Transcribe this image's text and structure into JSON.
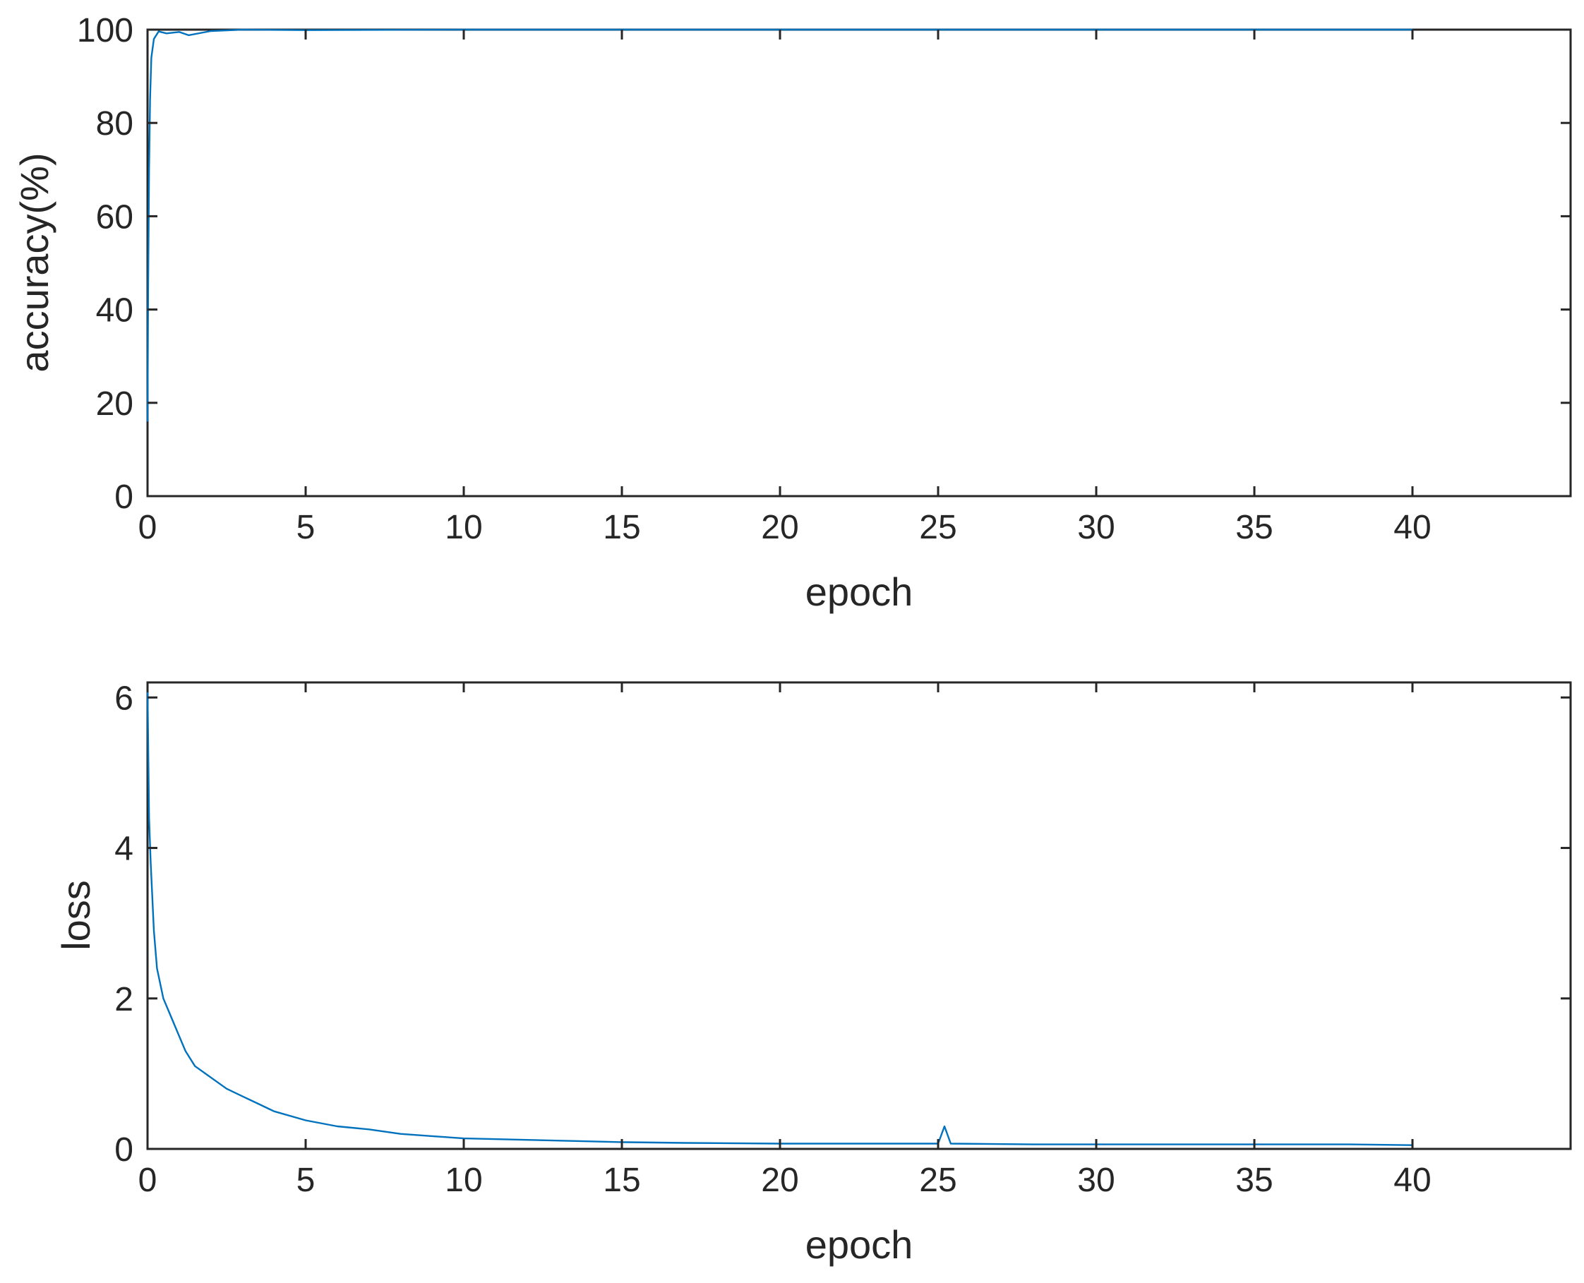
{
  "chart_data": [
    {
      "type": "line",
      "xlabel": "epoch",
      "ylabel": "accuracy(%)",
      "xlim": [
        0,
        45
      ],
      "ylim": [
        0,
        100
      ],
      "xticks": [
        0,
        5,
        10,
        15,
        20,
        25,
        30,
        35,
        40
      ],
      "yticks": [
        0,
        20,
        40,
        60,
        80,
        100
      ],
      "grid": false,
      "color": "#0072BD",
      "series": [
        {
          "x": [
            0,
            0.02,
            0.05,
            0.08,
            0.12,
            0.2,
            0.35,
            0.6,
            1.0,
            1.3,
            2.0,
            3.0,
            5.0,
            10.0,
            15.0,
            20.0,
            25.0,
            30.0,
            35.0,
            40.0
          ],
          "values": [
            16,
            45,
            70,
            85,
            94,
            98,
            99.6,
            99.2,
            99.5,
            98.8,
            99.7,
            100,
            99.9,
            100,
            100,
            100,
            100,
            100,
            100,
            100
          ]
        }
      ]
    },
    {
      "type": "line",
      "xlabel": "epoch",
      "ylabel": "loss",
      "xlim": [
        0,
        45
      ],
      "ylim": [
        0,
        6.2
      ],
      "xticks": [
        0,
        5,
        10,
        15,
        20,
        25,
        30,
        35,
        40
      ],
      "yticks": [
        0,
        2,
        4,
        6
      ],
      "grid": false,
      "color": "#0072BD",
      "series": [
        {
          "x": [
            0,
            0.05,
            0.1,
            0.2,
            0.3,
            0.5,
            0.7,
            0.9,
            1.2,
            1.5,
            2.0,
            2.5,
            3.0,
            3.5,
            4.0,
            5.0,
            6.0,
            7.0,
            8.0,
            9.0,
            10.0,
            12.0,
            14.0,
            15.0,
            17.0,
            20.0,
            22.0,
            25.0,
            25.2,
            25.4,
            28.0,
            30.0,
            33.0,
            35.0,
            38.0,
            40.0
          ],
          "values": [
            6.1,
            4.4,
            3.8,
            2.9,
            2.4,
            2.0,
            1.8,
            1.6,
            1.3,
            1.1,
            0.95,
            0.8,
            0.7,
            0.6,
            0.5,
            0.38,
            0.3,
            0.26,
            0.2,
            0.17,
            0.14,
            0.12,
            0.1,
            0.09,
            0.08,
            0.07,
            0.07,
            0.07,
            0.3,
            0.07,
            0.06,
            0.06,
            0.06,
            0.06,
            0.06,
            0.05
          ]
        }
      ]
    }
  ]
}
